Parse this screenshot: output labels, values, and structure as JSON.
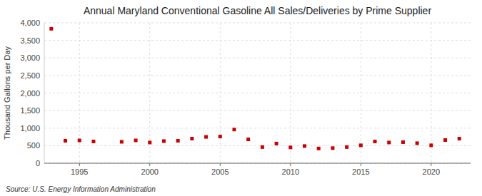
{
  "chart_data": {
    "type": "scatter",
    "title": "Annual Maryland Conventional Gasoline All Sales/Deliveries by Prime Supplier",
    "ylabel": "Thousand Gallons per Day",
    "source": "Source: U.S. Energy Information Administration",
    "color": "#cc0000",
    "marker": "square",
    "grid": true,
    "x": [
      1993,
      1994,
      1995,
      1996,
      1998,
      1999,
      2000,
      2001,
      2002,
      2003,
      2004,
      2005,
      2006,
      2007,
      2008,
      2009,
      2010,
      2011,
      2012,
      2013,
      2014,
      2015,
      2016,
      2017,
      2018,
      2019,
      2020,
      2021,
      2022
    ],
    "values": [
      3830,
      640,
      650,
      620,
      610,
      650,
      590,
      630,
      640,
      700,
      750,
      760,
      960,
      680,
      460,
      560,
      450,
      490,
      420,
      430,
      460,
      510,
      620,
      590,
      600,
      570,
      510,
      660,
      700
    ],
    "xlim": [
      1992.5,
      2022.8
    ],
    "xticks": [
      1995,
      2000,
      2005,
      2010,
      2015,
      2020
    ],
    "ylim": [
      0,
      4000
    ],
    "yticks": [
      0,
      500,
      {
        "value": 1000,
        "label": "1,000"
      },
      {
        "value": 1500,
        "label": "1,500"
      },
      {
        "value": 2000,
        "label": "2,000"
      },
      {
        "value": 2500,
        "label": "2,500"
      },
      {
        "value": 3000,
        "label": "3,000"
      },
      {
        "value": 3500,
        "label": "3,500"
      },
      {
        "value": 4000,
        "label": "4,000"
      }
    ]
  }
}
